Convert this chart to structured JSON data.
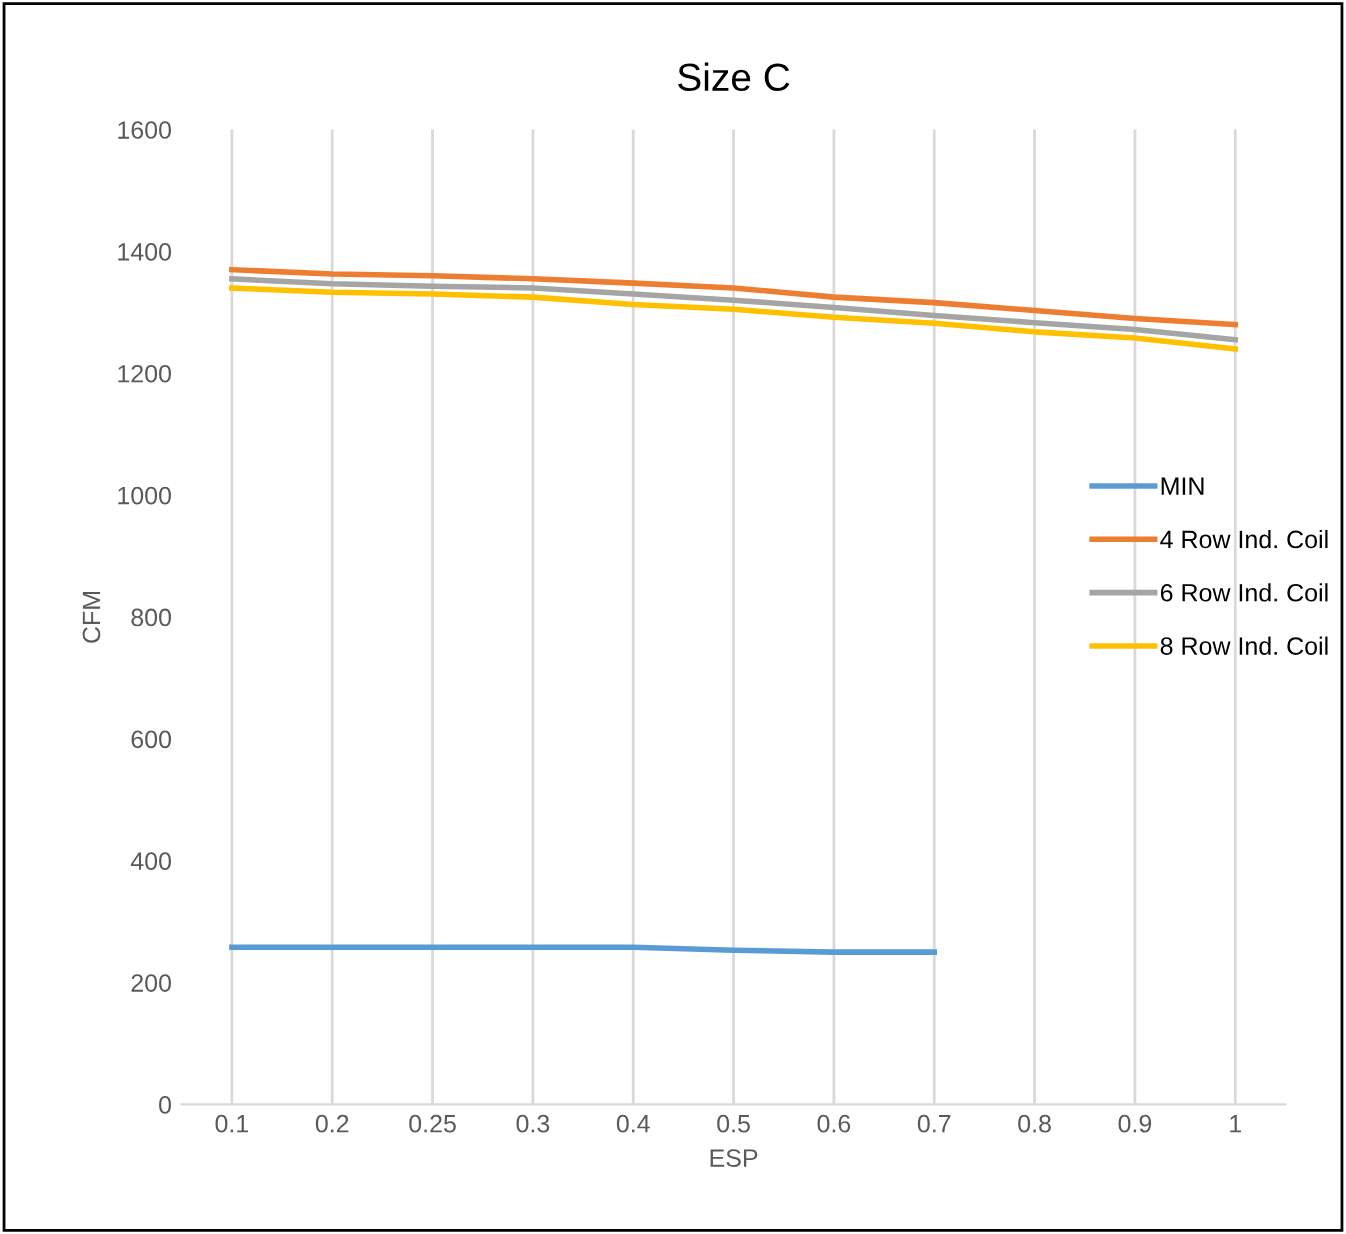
{
  "chart_data": {
    "type": "line",
    "title": "Size C",
    "xlabel": "ESP",
    "ylabel": "CFM",
    "categories": [
      "0.1",
      "0.2",
      "0.25",
      "0.3",
      "0.4",
      "0.5",
      "0.6",
      "0.7",
      "0.8",
      "0.9",
      "1"
    ],
    "series": [
      {
        "name": "MIN",
        "color": "#5b9bd5",
        "values": [
          258,
          258,
          258,
          258,
          258,
          253,
          250,
          250,
          null,
          null,
          null
        ]
      },
      {
        "name": "4 Row Ind. Coil",
        "color": "#ed7d31",
        "values": [
          1370,
          1363,
          1360,
          1355,
          1348,
          1340,
          1325,
          1316,
          1303,
          1290,
          1280
        ]
      },
      {
        "name": "6 Row Ind. Coil",
        "color": "#a5a5a5",
        "values": [
          1355,
          1347,
          1343,
          1340,
          1330,
          1320,
          1308,
          1295,
          1283,
          1272,
          1255
        ]
      },
      {
        "name": "8 Row Ind. Coil",
        "color": "#ffc000",
        "values": [
          1340,
          1333,
          1330,
          1325,
          1313,
          1305,
          1292,
          1282,
          1268,
          1258,
          1240
        ]
      }
    ],
    "ylim": [
      0,
      1600
    ],
    "yticks": [
      0,
      200,
      400,
      600,
      800,
      1000,
      1200,
      1400,
      1600
    ],
    "grid": "x",
    "legend": "right",
    "marker": "none",
    "line_style": "solid"
  }
}
